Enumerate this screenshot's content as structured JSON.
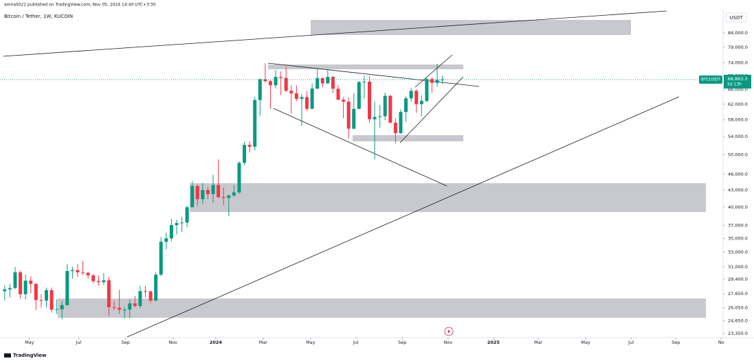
{
  "chart_data": {
    "type": "candlestick",
    "publisher_note": "amirali021 published on TradingView.com, Nov 05, 2024 14:40 UTC+3:30",
    "title": "Bitcoin / Tether, 1W, KUCOIN",
    "currency": "USDT",
    "symbol": "BTCUSDT",
    "last_price": {
      "value": 68863.3,
      "label": "68,863.3"
    },
    "countdown": "5d 13h",
    "brand": "TradingView",
    "up_color": "#089981",
    "down_color": "#f23645",
    "log_scale": true,
    "ylim": [
      22080,
      91700
    ],
    "yticks": [
      {
        "value": 84000,
        "label": "84,000.0"
      },
      {
        "value": 79000,
        "label": "79,000.0"
      },
      {
        "value": 74000,
        "label": "74,000.0"
      },
      {
        "value": 70000,
        "label": "70,000.0"
      },
      {
        "value": 66000,
        "label": "66,000.0"
      },
      {
        "value": 62000,
        "label": "62,000.0"
      },
      {
        "value": 58000,
        "label": "58,000.0"
      },
      {
        "value": 54000,
        "label": "54,000.0"
      },
      {
        "value": 50000,
        "label": "50,000.0"
      },
      {
        "value": 46000,
        "label": "46,000.0"
      },
      {
        "value": 43000,
        "label": "43,000.0"
      },
      {
        "value": 40000,
        "label": "40,000.0"
      },
      {
        "value": 37000,
        "label": "37,000.0"
      },
      {
        "value": 35000,
        "label": "35,000.0"
      },
      {
        "value": 33000,
        "label": "33,000.0"
      },
      {
        "value": 31000,
        "label": "31,000.0"
      },
      {
        "value": 29400,
        "label": "29,400.0"
      },
      {
        "value": 27650,
        "label": "27,650.0"
      },
      {
        "value": 26050,
        "label": "26,050.0"
      },
      {
        "value": 24650,
        "label": "24,650.0"
      },
      {
        "value": 23350,
        "label": "23,350.0"
      }
    ],
    "xlim": [
      -0.9,
      137.6
    ],
    "xticks": [
      {
        "value": 4.75,
        "label": "May"
      },
      {
        "value": 14.2,
        "label": "Jul"
      },
      {
        "value": 23.2,
        "label": "Sep"
      },
      {
        "value": 32.3,
        "label": "Nov"
      },
      {
        "value": 40.5,
        "label": "2024"
      },
      {
        "value": 49.6,
        "label": "Mar"
      },
      {
        "value": 58.7,
        "label": "May"
      },
      {
        "value": 67.4,
        "label": "Jul"
      },
      {
        "value": 76.3,
        "label": "Sep"
      },
      {
        "value": 85.1,
        "label": "Nov"
      },
      {
        "value": 93.8,
        "label": "2025"
      },
      {
        "value": 102.4,
        "label": "Mar"
      },
      {
        "value": 111.5,
        "label": "May"
      },
      {
        "value": 120.2,
        "label": "Jul"
      },
      {
        "value": 128.8,
        "label": "Sep"
      },
      {
        "value": 137.5,
        "label": "No"
      }
    ],
    "open": [
      27950,
      28170,
      28330,
      30300,
      27590,
      29230,
      28840,
      26920,
      26850,
      28070,
      25840,
      25880,
      26340,
      30460,
      30580,
      30290,
      30230,
      29900,
      29180,
      29050,
      29280,
      26100,
      26040,
      25830,
      25840,
      26530,
      26250,
      27960,
      27920,
      26850,
      29990,
      34500,
      35010,
      37050,
      37360,
      37450,
      39970,
      43770,
      41360,
      43010,
      42280,
      43950,
      41730,
      41580,
      42030,
      42580,
      48300,
      52130,
      51730,
      63110,
      68950,
      68390,
      67210,
      69650,
      69360,
      65660,
      64940,
      63420,
      63900,
      60800,
      66270,
      69290,
      67750,
      69640,
      66220,
      63210,
      62680,
      55850,
      60790,
      68150,
      68250,
      58160,
      58710,
      58900,
      64260,
      57300,
      54820,
      59980,
      63580,
      65630,
      62010,
      62870,
      69030,
      67910,
      68760
    ],
    "high": [
      28650,
      28800,
      31000,
      30500,
      30000,
      29800,
      28900,
      27600,
      28400,
      28400,
      27000,
      26800,
      31400,
      31000,
      31400,
      31800,
      30350,
      30050,
      29900,
      30200,
      29700,
      26800,
      28100,
      26100,
      27000,
      27400,
      28600,
      28600,
      28000,
      30300,
      35200,
      35900,
      38000,
      37900,
      38400,
      40250,
      44700,
      44000,
      44300,
      43600,
      45900,
      49000,
      43500,
      42200,
      43900,
      48600,
      52800,
      52900,
      64000,
      69200,
      73800,
      68900,
      71700,
      71300,
      72800,
      67200,
      67200,
      64700,
      65500,
      67700,
      71900,
      69500,
      71900,
      70000,
      67300,
      63900,
      63800,
      64900,
      68400,
      70000,
      69900,
      62700,
      61800,
      65100,
      64500,
      58300,
      60600,
      64100,
      66500,
      66100,
      64400,
      69400,
      69500,
      73600,
      70000
    ],
    "low": [
      26880,
      27200,
      28200,
      27100,
      27000,
      27700,
      25800,
      26100,
      26100,
      25500,
      25350,
      24800,
      26250,
      29500,
      29700,
      29950,
      29500,
      28900,
      28600,
      28700,
      25200,
      25800,
      25400,
      24900,
      24900,
      26100,
      26000,
      27200,
      26550,
      26800,
      29800,
      33400,
      34600,
      35600,
      36000,
      36700,
      39970,
      40200,
      40600,
      41400,
      40700,
      41500,
      40300,
      38500,
      41800,
      42300,
      47800,
      50500,
      50900,
      59000,
      68000,
      60800,
      66300,
      64500,
      65300,
      59600,
      62800,
      56550,
      60200,
      60700,
      66100,
      66600,
      67600,
      65000,
      63100,
      58400,
      53500,
      55800,
      60700,
      63500,
      57300,
      49000,
      56100,
      57900,
      57200,
      52550,
      54600,
      57500,
      62700,
      59800,
      58900,
      62500,
      65100,
      66800,
      67500
    ],
    "close": [
      28170,
      28330,
      30300,
      27590,
      29230,
      28840,
      26920,
      26850,
      28070,
      25840,
      25880,
      26340,
      30460,
      30580,
      30290,
      30230,
      29900,
      29180,
      29050,
      29280,
      26100,
      26040,
      25830,
      25840,
      26530,
      26250,
      27960,
      27920,
      26850,
      29990,
      34500,
      35010,
      37050,
      37360,
      37450,
      39970,
      43770,
      41360,
      43010,
      42280,
      43950,
      41730,
      41580,
      42030,
      42580,
      48300,
      52130,
      51730,
      63110,
      68950,
      68390,
      67210,
      69650,
      69360,
      65660,
      64940,
      63420,
      63900,
      60800,
      66270,
      69290,
      67750,
      69640,
      66220,
      63210,
      62680,
      55850,
      60790,
      68150,
      68250,
      58160,
      58710,
      58900,
      64260,
      57300,
      54820,
      59980,
      63580,
      65630,
      62010,
      62870,
      69030,
      67910,
      68760,
      68863.3
    ]
  }
}
